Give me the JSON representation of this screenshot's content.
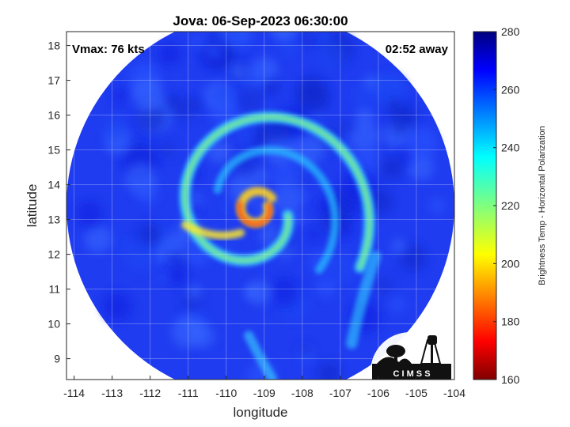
{
  "chart_data": {
    "type": "heatmap",
    "title": "Jova: 06-Sep-2023 06:30:00",
    "xlabel": "longitude",
    "ylabel": "latitude",
    "xlim": [
      -114.2,
      -104
    ],
    "ylim": [
      8.4,
      18.4
    ],
    "xticks": [
      "-114",
      "-113",
      "-112",
      "-111",
      "-110",
      "-109",
      "-108",
      "-107",
      "-106",
      "-105",
      "-104"
    ],
    "yticks": [
      "9",
      "10",
      "11",
      "12",
      "13",
      "14",
      "15",
      "16",
      "17",
      "18"
    ],
    "grid": true,
    "annotations": {
      "vmax": "Vmax: 76 kts",
      "time_away": "02:52 away"
    },
    "colorbar": {
      "label": "Brightness Temp - Horizontal Polarization",
      "min": 160,
      "max": 280,
      "ticks": [
        "160",
        "180",
        "200",
        "220",
        "240",
        "260",
        "280"
      ],
      "colormap": "jet"
    },
    "storm_center": {
      "lon": -109.2,
      "lat": 13.3
    },
    "swath": {
      "center_lon": -109.1,
      "center_lat": 13.4,
      "radius_deg": 5.1
    },
    "logo_text": "C I M S S"
  }
}
